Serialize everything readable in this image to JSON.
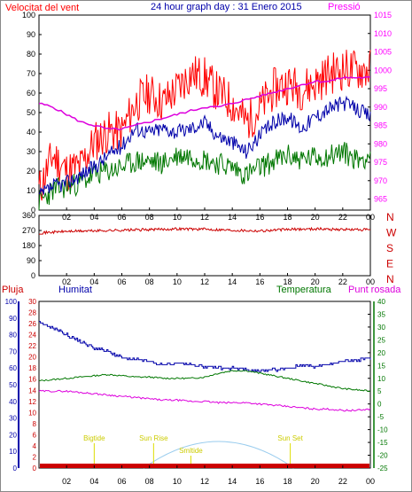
{
  "title": "24 hour graph day : 31 Enero 2015",
  "colors": {
    "wind": "#ff0000",
    "gust": "#ff0000",
    "avg": "#0000aa",
    "low": "#007700",
    "pressure": "#dd00dd",
    "dir": "#cc0000",
    "rain": "#cc0000",
    "humidity": "#0000aa",
    "temp": "#007700",
    "dew": "#dd00dd",
    "sun": "#99ccee",
    "event": "#dddd00",
    "border": "#000000"
  },
  "x_ticks": [
    "02",
    "04",
    "06",
    "08",
    "10",
    "12",
    "14",
    "16",
    "18",
    "20",
    "22",
    "00"
  ],
  "chart_data": [
    {
      "type": "line",
      "name": "wind-pressure",
      "left_label": "Velocitat del vent",
      "right_label": "Pressió",
      "left_ticks": [
        "0",
        "10",
        "20",
        "30",
        "40",
        "50",
        "60",
        "70",
        "80",
        "90",
        "100"
      ],
      "right_ticks": [
        "965",
        "970",
        "975",
        "980",
        "985",
        "990",
        "995",
        "1000",
        "1005",
        "1010",
        "1015"
      ],
      "ylim": [
        0,
        100
      ],
      "y2lim": [
        962,
        1015
      ],
      "x": [
        0,
        1,
        2,
        3,
        4,
        5,
        6,
        7,
        8,
        9,
        10,
        11,
        12,
        13,
        14,
        15,
        16,
        17,
        18,
        19,
        20,
        21,
        22,
        23,
        24
      ],
      "series": [
        {
          "values": [
            10,
            28,
            20,
            22,
            35,
            40,
            40,
            55,
            60,
            55,
            62,
            70,
            68,
            60,
            55,
            45,
            52,
            62,
            65,
            62,
            65,
            70,
            72,
            72,
            72
          ]
        },
        {
          "values": [
            7,
            12,
            14,
            18,
            22,
            28,
            33,
            42,
            40,
            42,
            40,
            42,
            45,
            38,
            35,
            30,
            38,
            45,
            48,
            42,
            48,
            52,
            55,
            52,
            48
          ]
        },
        {
          "values": [
            4,
            10,
            12,
            14,
            18,
            20,
            22,
            25,
            25,
            24,
            28,
            28,
            26,
            24,
            22,
            18,
            22,
            25,
            28,
            26,
            27,
            28,
            30,
            26,
            28
          ]
        },
        {
          "values": [
            991,
            990,
            988,
            986,
            985,
            984,
            984,
            985,
            986,
            987,
            988,
            989,
            990,
            990,
            991,
            992,
            993,
            994,
            995,
            996,
            997,
            997,
            998,
            998,
            998
          ]
        }
      ]
    },
    {
      "type": "line",
      "name": "wind-direction",
      "left_ticks": [
        "0",
        "90",
        "180",
        "270",
        "360"
      ],
      "right_ticks": [
        "N",
        "W",
        "S",
        "E",
        "N"
      ],
      "ylim": [
        0,
        360
      ],
      "x": [
        0,
        2,
        4,
        6,
        8,
        10,
        12,
        14,
        16,
        18,
        20,
        22,
        24
      ],
      "series": [
        {
          "values": [
            255,
            265,
            268,
            272,
            275,
            280,
            278,
            272,
            268,
            276,
            280,
            276,
            274
          ]
        }
      ]
    },
    {
      "type": "line",
      "name": "humidity-temperature",
      "rain_label": "Pluja",
      "humidity_label": "Humitat",
      "temp_label": "Temperatura",
      "dew_label": "Punt rosada",
      "rain_ticks": [
        "0",
        "2",
        "4",
        "6",
        "8",
        "10",
        "12",
        "14",
        "16",
        "18",
        "20",
        "22",
        "24",
        "26",
        "28",
        "30"
      ],
      "humidity_ticks": [
        "0",
        "10",
        "20",
        "30",
        "40",
        "50",
        "60",
        "70",
        "80",
        "90",
        "100"
      ],
      "temp_ticks": [
        "-25",
        "-20",
        "-15",
        "-10",
        "-5",
        "0",
        "5",
        "10",
        "15",
        "20",
        "25",
        "30",
        "35",
        "40"
      ],
      "humidity_lim": [
        0,
        100
      ],
      "temp_lim": [
        -25,
        40
      ],
      "x": [
        0,
        1,
        2,
        3,
        4,
        5,
        6,
        7,
        8,
        9,
        10,
        11,
        12,
        13,
        14,
        15,
        16,
        17,
        18,
        19,
        20,
        21,
        22,
        23,
        24
      ],
      "series": [
        {
          "values": [
            87,
            84,
            80,
            76,
            72,
            70,
            66,
            65,
            64,
            62,
            63,
            62,
            61,
            60,
            60,
            59,
            58,
            59,
            60,
            62,
            61,
            62,
            64,
            65,
            66
          ]
        },
        {
          "values": [
            9,
            9.5,
            10,
            10.5,
            11,
            11.5,
            11,
            10.5,
            10.5,
            10,
            10,
            10,
            10.5,
            12,
            13,
            13,
            12,
            11,
            10,
            9,
            8,
            7,
            6,
            5.5,
            5
          ]
        },
        {
          "values": [
            5,
            5,
            5,
            4.5,
            4,
            3.5,
            3,
            2.5,
            2,
            1.5,
            1.5,
            1,
            1,
            0.5,
            0.5,
            0.5,
            0,
            -0.5,
            -1,
            -1.5,
            -2,
            -2,
            -2.5,
            -2.5,
            -2
          ]
        }
      ],
      "rain_mm": 0.8,
      "events": [
        {
          "label": "Bigtide",
          "hour": 4
        },
        {
          "label": "Sun Rise",
          "hour": 8.3
        },
        {
          "label": "Smltide",
          "hour": 11
        },
        {
          "label": "Sun Set",
          "hour": 18.2
        }
      ]
    }
  ]
}
